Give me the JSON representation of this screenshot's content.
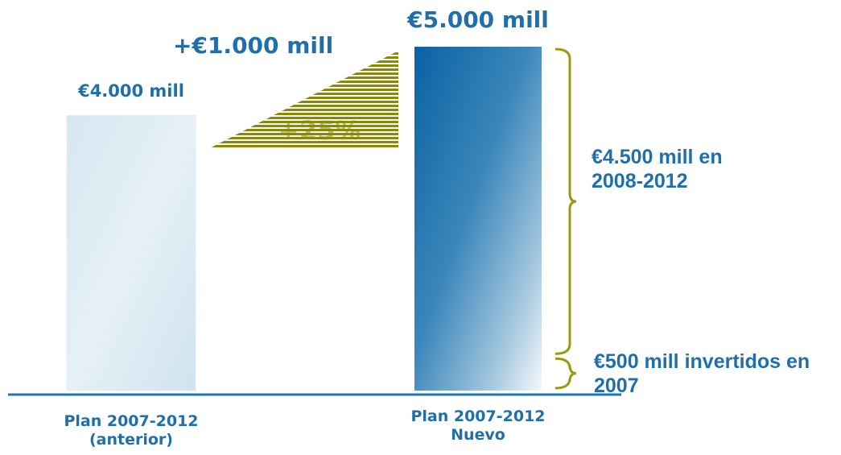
{
  "chart_data": {
    "type": "bar",
    "categories": [
      "Plan 2007-2012 (anterior)",
      "Plan 2007-2012 Nuevo"
    ],
    "values": [
      4000,
      5000
    ],
    "value_labels": [
      "€4.000 mill",
      "€5.000 mill"
    ],
    "increase": {
      "value": 1000,
      "label": "+€1.000 mill",
      "percent": 25,
      "percent_label": "+25%"
    },
    "breakdown": [
      {
        "value": 500,
        "label": "€500 mill invertidos en 2007"
      },
      {
        "value": 4500,
        "label": "€4.500 mill en 2008-2012"
      }
    ],
    "increase_color": "#8a8a00",
    "brace_color": "#9a9a10"
  }
}
